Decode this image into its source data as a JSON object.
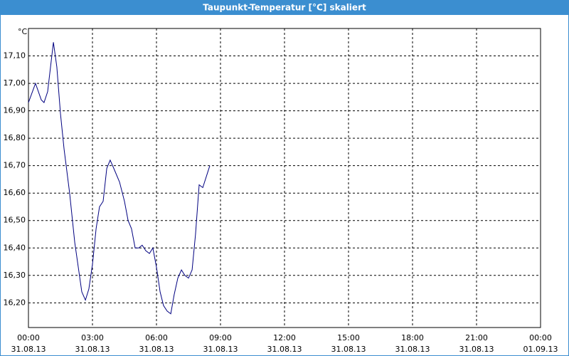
{
  "chart_data": {
    "type": "line",
    "title": "Taupunkt-Temperatur [°C] skaliert",
    "y_unit": "°C",
    "x": [
      0,
      0.33,
      0.6,
      0.73,
      0.9,
      1.17,
      1.33,
      1.5,
      1.67,
      1.93,
      2.17,
      2.5,
      2.67,
      2.83,
      3.0,
      3.17,
      3.33,
      3.5,
      3.67,
      3.83,
      4.0,
      4.27,
      4.5,
      4.67,
      4.83,
      5.0,
      5.17,
      5.33,
      5.5,
      5.67,
      5.83,
      6.0,
      6.17,
      6.33,
      6.5,
      6.67,
      6.83,
      7.0,
      7.17,
      7.33,
      7.5,
      7.67,
      7.83,
      8.0,
      8.17,
      8.5
    ],
    "series": [
      {
        "name": "Taupunkt-Temperatur",
        "color": "#000080",
        "values": [
          16.93,
          17.0,
          16.94,
          16.93,
          16.97,
          17.15,
          17.06,
          16.89,
          16.76,
          16.6,
          16.42,
          16.24,
          16.21,
          16.25,
          16.34,
          16.47,
          16.55,
          16.57,
          16.69,
          16.72,
          16.69,
          16.64,
          16.57,
          16.5,
          16.47,
          16.4,
          16.4,
          16.41,
          16.39,
          16.38,
          16.4,
          16.33,
          16.24,
          16.19,
          16.17,
          16.16,
          16.23,
          16.29,
          16.32,
          16.3,
          16.29,
          16.32,
          16.45,
          16.63,
          16.62,
          16.7
        ]
      }
    ],
    "xlim": [
      0,
      24
    ],
    "xticks": [
      {
        "value": 0,
        "label": "00:00"
      },
      {
        "value": 3,
        "label": "03:00"
      },
      {
        "value": 6,
        "label": "06:00"
      },
      {
        "value": 9,
        "label": "09:00"
      },
      {
        "value": 12,
        "label": "12:00"
      },
      {
        "value": 15,
        "label": "15:00"
      },
      {
        "value": 18,
        "label": "18:00"
      },
      {
        "value": 21,
        "label": "21:00"
      },
      {
        "value": 24,
        "label": "00:00"
      }
    ],
    "xtick_dates": [
      "31.08.13",
      "31.08.13",
      "31.08.13",
      "31.08.13",
      "31.08.13",
      "31.08.13",
      "31.08.13",
      "31.08.13",
      "01.09.13"
    ],
    "ylim": [
      16.11,
      17.2
    ],
    "yticks": [
      {
        "value": 16.2,
        "label": "16,20"
      },
      {
        "value": 16.3,
        "label": "16,30"
      },
      {
        "value": 16.4,
        "label": "16,40"
      },
      {
        "value": 16.5,
        "label": "16,50"
      },
      {
        "value": 16.6,
        "label": "16,60"
      },
      {
        "value": 16.7,
        "label": "16,70"
      },
      {
        "value": 16.8,
        "label": "16,80"
      },
      {
        "value": 16.9,
        "label": "16,90"
      },
      {
        "value": 17.0,
        "label": "17,00"
      },
      {
        "value": 17.1,
        "label": "17,10"
      }
    ],
    "grid": true
  }
}
